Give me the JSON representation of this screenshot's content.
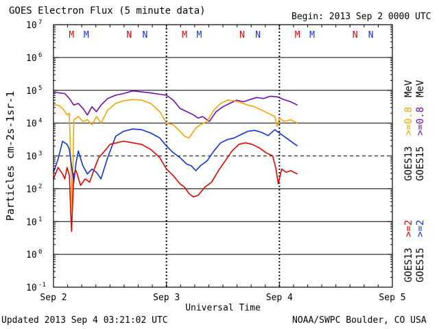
{
  "header": {
    "title": "GOES Electron Flux (5 minute data)",
    "begin": "Begin: 2013 Sep 2 0000 UTC"
  },
  "footer": {
    "updated": "Updated 2013 Sep  4 03:21:02 UTC",
    "credit": "NOAA/SWPC Boulder, CO USA"
  },
  "colors": {
    "purple": "#6a0dad",
    "orange": "#f5a300",
    "blue": "#1030e0",
    "red": "#e00000",
    "axis": "#000000"
  },
  "chart_data": {
    "type": "line",
    "title": "GOES Electron Flux (5 minute data)",
    "xlabel": "Universal Time",
    "ylabel": "Particles cm-2s-1sr-1",
    "x_unit": "days since 2013 Sep 2 0000 UTC",
    "xlim": [
      0,
      3
    ],
    "ylim_log10": [
      -1,
      7
    ],
    "y_scale": "log",
    "grid": "horizontal lines at each decade; dashed line at 10^3",
    "dashed_level_log10": 3,
    "x_ticks": [
      {
        "value": 0,
        "label": "Sep 2"
      },
      {
        "value": 1,
        "label": "Sep 3"
      },
      {
        "value": 2,
        "label": "Sep 4"
      },
      {
        "value": 3,
        "label": "Sep 5"
      }
    ],
    "y_ticks": [
      {
        "exp": 7,
        "label": "10",
        "sup": "7"
      },
      {
        "exp": 6,
        "label": "10",
        "sup": "6"
      },
      {
        "exp": 5,
        "label": "10",
        "sup": "5"
      },
      {
        "exp": 4,
        "label": "10",
        "sup": "4"
      },
      {
        "exp": 3,
        "label": "10",
        "sup": "3"
      },
      {
        "exp": 2,
        "label": "10",
        "sup": "2"
      },
      {
        "exp": 1,
        "label": "10",
        "sup": "1"
      },
      {
        "exp": 0,
        "label": "10",
        "sup": "0"
      },
      {
        "exp": -1,
        "label": "10",
        "sup": "-1"
      }
    ],
    "markers": [
      {
        "day": 0.16,
        "label": "M",
        "color": "#e00000"
      },
      {
        "day": 0.29,
        "label": "M",
        "color": "#1030e0"
      },
      {
        "day": 0.67,
        "label": "N",
        "color": "#e00000"
      },
      {
        "day": 0.81,
        "label": "N",
        "color": "#1030e0"
      },
      {
        "day": 1.16,
        "label": "M",
        "color": "#e00000"
      },
      {
        "day": 1.29,
        "label": "M",
        "color": "#1030e0"
      },
      {
        "day": 1.67,
        "label": "N",
        "color": "#e00000"
      },
      {
        "day": 1.81,
        "label": "N",
        "color": "#1030e0"
      },
      {
        "day": 2.16,
        "label": "M",
        "color": "#e00000"
      },
      {
        "day": 2.29,
        "label": "M",
        "color": "#1030e0"
      },
      {
        "day": 2.67,
        "label": "N",
        "color": "#e00000"
      },
      {
        "day": 2.81,
        "label": "N",
        "color": "#1030e0"
      }
    ],
    "legend": [
      {
        "sat": "GOES13",
        "energy": ">=0.8",
        "unit": "MeV",
        "color": "#f5a300"
      },
      {
        "sat": "GOES15",
        "energy": ">=0.8",
        "unit": "MeV",
        "color": "#6a0dad"
      },
      {
        "sat": "GOES13",
        "energy": ">=2",
        "unit": "",
        "color": "#e00000"
      },
      {
        "sat": "GOES15",
        "energy": ">=2",
        "unit": "",
        "color": "#1030e0"
      }
    ],
    "series": [
      {
        "name": "GOES15 >=0.8 MeV",
        "color": "#6a0dad",
        "x": [
          0,
          0.05,
          0.1,
          0.14,
          0.18,
          0.22,
          0.26,
          0.3,
          0.34,
          0.38,
          0.42,
          0.48,
          0.55,
          0.62,
          0.7,
          0.78,
          0.86,
          0.94,
          1.0,
          1.06,
          1.12,
          1.18,
          1.24,
          1.28,
          1.32,
          1.38,
          1.44,
          1.5,
          1.56,
          1.62,
          1.68,
          1.74,
          1.8,
          1.86,
          1.92,
          1.98,
          2.04,
          2.1,
          2.16
        ],
        "log10": [
          4.95,
          4.92,
          4.9,
          4.75,
          4.55,
          4.6,
          4.45,
          4.25,
          4.5,
          4.35,
          4.55,
          4.75,
          4.85,
          4.9,
          4.98,
          4.95,
          4.92,
          4.88,
          4.85,
          4.7,
          4.45,
          4.35,
          4.25,
          4.15,
          4.2,
          4.05,
          4.35,
          4.5,
          4.6,
          4.7,
          4.65,
          4.72,
          4.78,
          4.75,
          4.82,
          4.8,
          4.72,
          4.65,
          4.55
        ]
      },
      {
        "name": "GOES13 >=0.8 MeV",
        "color": "#f5a300",
        "x": [
          0,
          0.04,
          0.08,
          0.12,
          0.14,
          0.155,
          0.165,
          0.18,
          0.22,
          0.26,
          0.3,
          0.34,
          0.38,
          0.42,
          0.48,
          0.55,
          0.62,
          0.7,
          0.78,
          0.86,
          0.94,
          1.0,
          1.06,
          1.12,
          1.16,
          1.2,
          1.26,
          1.3,
          1.36,
          1.42,
          1.48,
          1.54,
          1.6,
          1.66,
          1.72,
          1.78,
          1.84,
          1.9,
          1.96,
          1.98,
          2.0,
          2.04,
          2.1,
          2.16
        ],
        "log10": [
          4.55,
          4.55,
          4.45,
          4.25,
          4.3,
          2.5,
          1.3,
          4.1,
          4.2,
          4.05,
          4.1,
          3.95,
          4.2,
          4.0,
          4.4,
          4.6,
          4.68,
          4.72,
          4.7,
          4.6,
          4.35,
          4.0,
          3.95,
          3.75,
          3.6,
          3.55,
          3.85,
          3.95,
          4.05,
          4.4,
          4.6,
          4.7,
          4.68,
          4.62,
          4.55,
          4.5,
          4.4,
          4.3,
          4.2,
          3.9,
          4.15,
          4.05,
          4.1,
          4.0
        ]
      },
      {
        "name": "GOES15 >=2 MeV",
        "color": "#1030e0",
        "x": [
          0,
          0.04,
          0.08,
          0.12,
          0.14,
          0.16,
          0.18,
          0.2,
          0.22,
          0.26,
          0.3,
          0.34,
          0.38,
          0.42,
          0.48,
          0.55,
          0.62,
          0.7,
          0.78,
          0.86,
          0.94,
          1.0,
          1.06,
          1.12,
          1.18,
          1.22,
          1.26,
          1.3,
          1.36,
          1.42,
          1.48,
          1.54,
          1.6,
          1.66,
          1.72,
          1.78,
          1.84,
          1.9,
          1.96,
          2.0,
          2.06,
          2.12,
          2.16
        ],
        "log10": [
          2.5,
          2.9,
          3.45,
          3.35,
          3.2,
          2.7,
          2.2,
          2.8,
          3.15,
          2.7,
          2.45,
          2.6,
          2.5,
          2.3,
          2.95,
          3.6,
          3.75,
          3.82,
          3.8,
          3.7,
          3.55,
          3.3,
          3.1,
          2.95,
          2.75,
          2.7,
          2.55,
          2.7,
          2.85,
          3.15,
          3.4,
          3.5,
          3.55,
          3.65,
          3.75,
          3.78,
          3.72,
          3.62,
          3.8,
          3.7,
          3.55,
          3.4,
          3.3
        ]
      },
      {
        "name": "GOES13 >=2 MeV",
        "color": "#e00000",
        "x": [
          0,
          0.04,
          0.08,
          0.1,
          0.12,
          0.14,
          0.15,
          0.16,
          0.17,
          0.18,
          0.2,
          0.24,
          0.28,
          0.32,
          0.36,
          0.4,
          0.44,
          0.5,
          0.56,
          0.62,
          0.7,
          0.78,
          0.86,
          0.94,
          1.0,
          1.06,
          1.12,
          1.16,
          1.2,
          1.24,
          1.28,
          1.34,
          1.4,
          1.46,
          1.52,
          1.58,
          1.64,
          1.7,
          1.76,
          1.82,
          1.88,
          1.94,
          1.97,
          1.99,
          2.02,
          2.06,
          2.1,
          2.16
        ],
        "log10": [
          2.3,
          2.65,
          2.45,
          2.3,
          2.65,
          2.4,
          1.5,
          0.7,
          1.6,
          2.45,
          2.55,
          2.1,
          2.3,
          2.2,
          2.6,
          2.95,
          3.1,
          3.35,
          3.4,
          3.45,
          3.4,
          3.35,
          3.2,
          2.95,
          2.6,
          2.4,
          2.15,
          2.05,
          1.85,
          1.75,
          1.8,
          2.05,
          2.2,
          2.55,
          2.85,
          3.15,
          3.35,
          3.4,
          3.35,
          3.25,
          3.1,
          3.0,
          2.6,
          2.15,
          2.6,
          2.5,
          2.55,
          2.45
        ]
      }
    ]
  }
}
